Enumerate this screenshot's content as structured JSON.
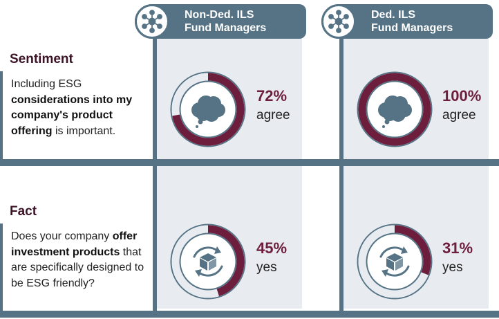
{
  "columns": [
    {
      "line1": "Non-Ded. ILS",
      "line2": "Fund Managers",
      "icon": "network-icon"
    },
    {
      "line1": "Ded. ILS",
      "line2": "Fund Managers",
      "icon": "network-icon"
    }
  ],
  "sections": [
    {
      "title": "Sentiment",
      "desc": [
        {
          "t": "Including ESG ",
          "b": false
        },
        {
          "t": "considerations into my company's product offering",
          "b": true
        },
        {
          "t": " is important.",
          "b": false
        }
      ],
      "icon": "cloud-thought-icon"
    },
    {
      "title": "Fact",
      "desc": [
        {
          "t": "Does your company ",
          "b": false
        },
        {
          "t": "offer investment products",
          "b": true
        },
        {
          "t": " that are specifically designed to be ESG friendly?",
          "b": false
        }
      ],
      "icon": "box-recycle-icon"
    }
  ],
  "chart_data": {
    "type": "pie",
    "subtype": "donut",
    "colors": {
      "filled": "#6d1e3c",
      "empty": "#e8ebf0",
      "ring_outline": "#557385",
      "icon": "#557385"
    },
    "charts": [
      {
        "section": "Sentiment",
        "column": "Non-Ded. ILS Fund Managers",
        "value": 72,
        "label": "72%",
        "unit": "agree"
      },
      {
        "section": "Sentiment",
        "column": "Ded. ILS Fund Managers",
        "value": 100,
        "label": "100%",
        "unit": "agree"
      },
      {
        "section": "Fact",
        "column": "Non-Ded. ILS Fund Managers",
        "value": 45,
        "label": "45%",
        "unit": "yes"
      },
      {
        "section": "Fact",
        "column": "Ded. ILS Fund Managers",
        "value": 31,
        "label": "31%",
        "unit": "yes"
      }
    ]
  }
}
